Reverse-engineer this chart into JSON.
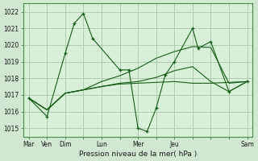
{
  "background_color": "#cfe8cf",
  "plot_bg_color": "#d8efd8",
  "grid_color": "#b0ccb0",
  "line_color": "#1a5c1a",
  "xlabel": "Pression niveau de la mer( hPa )",
  "ylim": [
    1014.5,
    1022.5
  ],
  "yticks": [
    1015,
    1016,
    1017,
    1018,
    1019,
    1020,
    1021,
    1022
  ],
  "xtick_labels": [
    "Mar",
    "Ven",
    "Dim",
    "",
    "Lun",
    "",
    "Mer",
    "",
    "Jeu",
    "",
    "",
    "",
    "Sam"
  ],
  "xtick_positions": [
    0,
    1,
    2,
    3,
    4,
    5,
    6,
    7,
    8,
    9,
    10,
    11,
    12
  ],
  "series1_x": [
    0,
    1,
    2,
    2.5,
    3,
    3.5,
    5,
    5.5,
    6,
    6.5,
    7,
    7.5,
    8,
    9,
    9.3,
    10,
    11,
    12
  ],
  "series1_y": [
    1016.8,
    1015.7,
    1019.5,
    1021.3,
    1021.9,
    1020.4,
    1018.5,
    1018.5,
    1015.0,
    1014.8,
    1016.2,
    1018.2,
    1019.0,
    1021.0,
    1019.8,
    1020.2,
    1017.2,
    1017.8
  ],
  "series2_x": [
    0,
    1,
    2,
    3,
    4,
    5,
    6,
    7,
    8,
    9,
    10,
    11,
    12
  ],
  "series2_y": [
    1016.8,
    1016.1,
    1017.1,
    1017.3,
    1017.5,
    1017.65,
    1017.7,
    1017.75,
    1017.8,
    1017.7,
    1017.7,
    1017.75,
    1017.8
  ],
  "series3_x": [
    0,
    1,
    2,
    3,
    4,
    5,
    6,
    7,
    8,
    9,
    10,
    11,
    12
  ],
  "series3_y": [
    1016.8,
    1016.1,
    1017.1,
    1017.3,
    1017.8,
    1018.15,
    1018.6,
    1019.2,
    1019.6,
    1019.9,
    1019.85,
    1017.7,
    1017.8
  ],
  "series4_x": [
    0,
    1,
    2,
    3,
    4,
    5,
    6,
    7,
    8,
    9,
    10,
    11,
    12
  ],
  "series4_y": [
    1016.8,
    1016.1,
    1017.1,
    1017.3,
    1017.5,
    1017.7,
    1017.8,
    1018.05,
    1018.45,
    1018.7,
    1017.8,
    1017.2,
    1017.8
  ]
}
